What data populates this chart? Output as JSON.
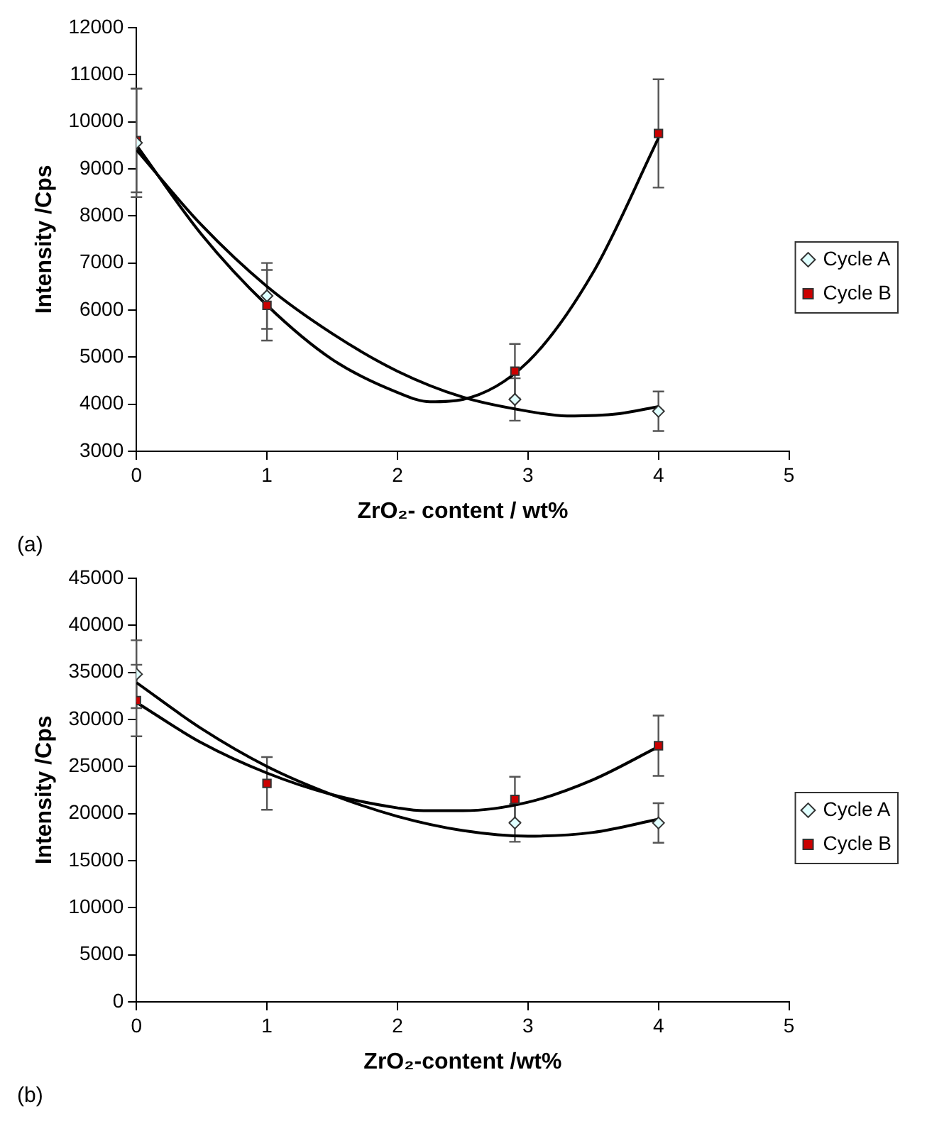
{
  "chart_data": [
    {
      "type": "scatter",
      "xlabel": "ZrO₂- content / wt%",
      "ylabel": "Intensity /Cps",
      "annotations": [
        "(a)"
      ],
      "xlim": [
        0,
        5
      ],
      "xticks": [
        0,
        1,
        2,
        3,
        4,
        5
      ],
      "ylim": [
        3000,
        12000
      ],
      "yticks": [
        3000,
        4000,
        5000,
        6000,
        7000,
        8000,
        9000,
        10000,
        11000,
        12000
      ],
      "grid": false,
      "legend": "right",
      "series": [
        {
          "name": "Cycle A",
          "color": "#e0ffff",
          "marker": "diamond",
          "x": [
            0,
            1,
            2.9,
            4
          ],
          "values": [
            9550,
            6300,
            4100,
            3850
          ],
          "errors": [
            1150,
            700,
            450,
            420
          ]
        },
        {
          "name": "Cycle B",
          "color": "#cc0000",
          "marker": "square",
          "x": [
            0,
            1,
            2.9,
            4
          ],
          "values": [
            9600,
            6100,
            4700,
            9750
          ],
          "errors": [
            1100,
            750,
            580,
            1150
          ]
        },
        {
          "type": "line",
          "color": "#000000",
          "marker": "none",
          "x": [
            0,
            0.5,
            1,
            1.5,
            2,
            2.5,
            3,
            3.3,
            3.7,
            4
          ],
          "values": [
            9400,
            7800,
            6500,
            5500,
            4700,
            4150,
            3850,
            3750,
            3800,
            3950
          ]
        },
        {
          "type": "line",
          "color": "#000000",
          "marker": "none",
          "x": [
            0,
            0.5,
            1,
            1.5,
            2,
            2.25,
            2.5,
            3,
            3.5,
            4
          ],
          "values": [
            9500,
            7600,
            6100,
            4950,
            4250,
            4050,
            4100,
            4900,
            6800,
            9650
          ]
        }
      ]
    },
    {
      "type": "scatter",
      "xlabel": "ZrO₂-content /wt%",
      "ylabel": "Intensity /Cps",
      "annotations": [
        "(b)"
      ],
      "xlim": [
        0,
        5
      ],
      "xticks": [
        0,
        1,
        2,
        3,
        4,
        5
      ],
      "ylim": [
        0,
        45000
      ],
      "yticks": [
        0,
        5000,
        10000,
        15000,
        20000,
        25000,
        30000,
        35000,
        40000,
        45000
      ],
      "grid": false,
      "legend": "right",
      "series": [
        {
          "name": "Cycle A",
          "color": "#e0ffff",
          "marker": "diamond",
          "x": [
            0,
            1,
            2.9,
            4
          ],
          "values": [
            34800,
            null,
            19000,
            19000
          ],
          "errors": [
            3600,
            null,
            2000,
            2100
          ]
        },
        {
          "name": "Cycle B",
          "color": "#cc0000",
          "marker": "square",
          "x": [
            0,
            1,
            2.9,
            4
          ],
          "values": [
            32000,
            23200,
            21500,
            27200
          ],
          "errors": [
            3800,
            2800,
            2400,
            3200
          ]
        },
        {
          "type": "line",
          "color": "#000000",
          "marker": "none",
          "x": [
            0,
            0.5,
            1,
            1.5,
            2,
            2.5,
            3,
            3.5,
            4
          ],
          "values": [
            33900,
            29000,
            25000,
            22000,
            19700,
            18200,
            17600,
            18000,
            19400
          ]
        },
        {
          "type": "line",
          "color": "#000000",
          "marker": "none",
          "x": [
            0,
            0.5,
            1,
            1.5,
            2,
            2.2,
            2.5,
            3,
            3.5,
            4
          ],
          "values": [
            31800,
            27500,
            24300,
            22000,
            20600,
            20300,
            20300,
            21200,
            23600,
            27100
          ]
        }
      ]
    }
  ]
}
